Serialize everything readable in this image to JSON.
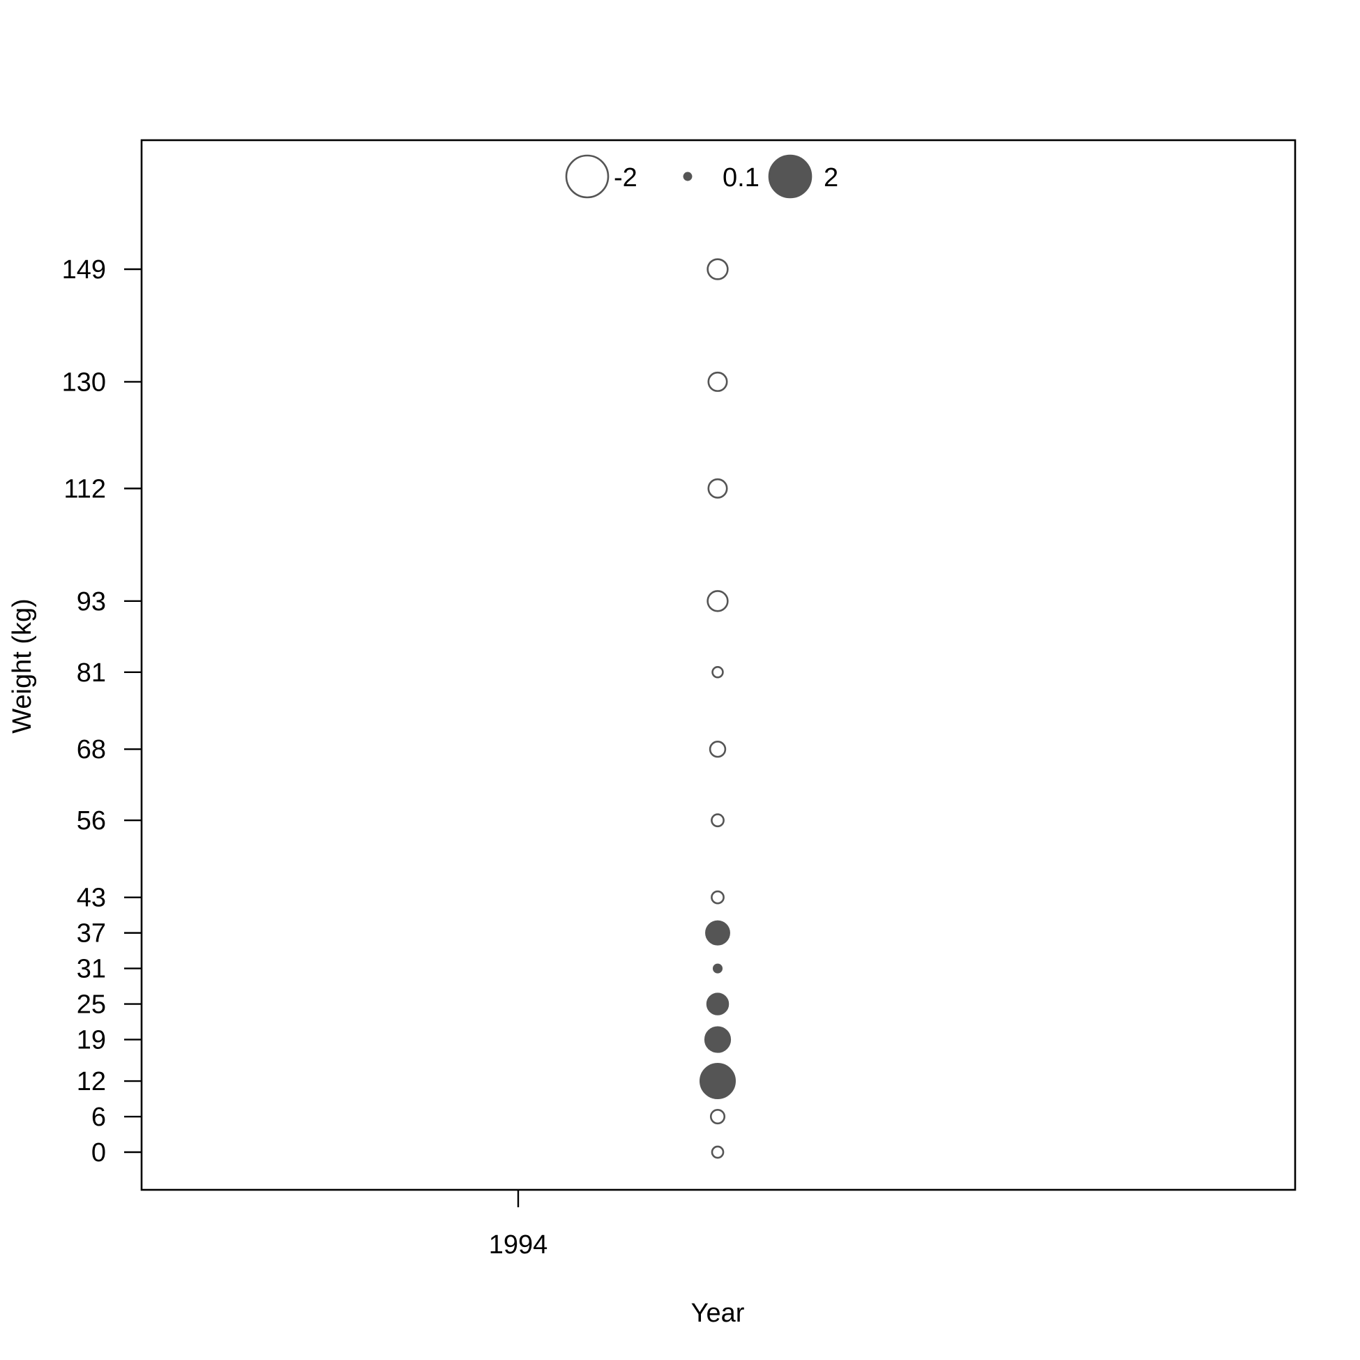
{
  "chart_data": {
    "type": "scatter",
    "title": "",
    "xlabel": "Year",
    "ylabel": "Weight (kg)",
    "x_ticks": [
      "1994"
    ],
    "y_ticks": [
      0,
      6,
      12,
      19,
      25,
      31,
      37,
      43,
      56,
      68,
      81,
      93,
      112,
      130,
      149
    ],
    "legend": {
      "placement": "top",
      "entries": [
        {
          "label": "-2",
          "value": -2
        },
        {
          "label": "0.1",
          "value": 0.1
        },
        {
          "label": "2",
          "value": 2
        }
      ]
    },
    "grid": false,
    "colors": {
      "positive_fill": "#555555",
      "negative_fill": "#ffffff",
      "stroke": "#555555"
    },
    "points": [
      {
        "weight": 149,
        "residual": -0.9
      },
      {
        "weight": 130,
        "residual": -0.8
      },
      {
        "weight": 112,
        "residual": -0.8
      },
      {
        "weight": 93,
        "residual": -0.9
      },
      {
        "weight": 81,
        "residual": -0.3
      },
      {
        "weight": 68,
        "residual": -0.6
      },
      {
        "weight": 56,
        "residual": -0.4
      },
      {
        "weight": 43,
        "residual": -0.4
      },
      {
        "weight": 37,
        "residual": 1.1
      },
      {
        "weight": 31,
        "residual": 0.15
      },
      {
        "weight": 25,
        "residual": 0.95
      },
      {
        "weight": 19,
        "residual": 1.2
      },
      {
        "weight": 12,
        "residual": 1.8
      },
      {
        "weight": 6,
        "residual": -0.5
      },
      {
        "weight": 0,
        "residual": -0.35
      }
    ]
  }
}
